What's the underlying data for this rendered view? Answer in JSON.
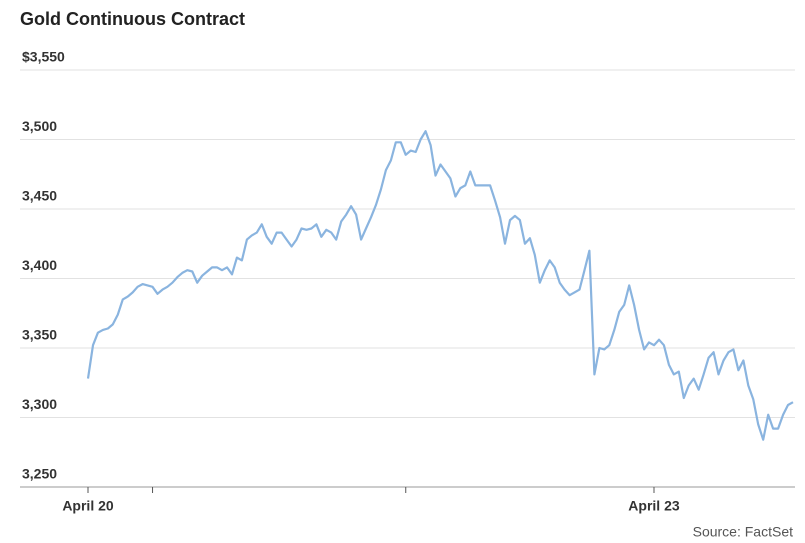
{
  "chart_data": {
    "type": "line",
    "title": "Gold Continuous Contract",
    "source": "Source: FactSet",
    "color": "#8ab4df",
    "grid": true,
    "xlim": [
      0,
      142
    ],
    "xticks": [
      {
        "value": 0,
        "label": "April 20"
      },
      {
        "value": 13,
        "label": null
      },
      {
        "value": 64,
        "label": null
      },
      {
        "value": 114,
        "label": "April 23"
      }
    ],
    "ylim": [
      3250,
      3550
    ],
    "yticks": [
      {
        "value": 3250,
        "label": "3,250"
      },
      {
        "value": 3300,
        "label": "3,300"
      },
      {
        "value": 3350,
        "label": "3,350"
      },
      {
        "value": 3400,
        "label": "3,400"
      },
      {
        "value": 3450,
        "label": "3,450"
      },
      {
        "value": 3500,
        "label": "3,500"
      },
      {
        "value": 3550,
        "label": "$3,550"
      }
    ],
    "values": [
      3328,
      3352,
      3361,
      3363,
      3364,
      3367,
      3374,
      3385,
      3387,
      3390,
      3394,
      3396,
      3395,
      3394,
      3389,
      3392,
      3394,
      3397,
      3401,
      3404,
      3406,
      3405,
      3397,
      3402,
      3405,
      3408,
      3408,
      3406,
      3408,
      3403,
      3415,
      3413,
      3428,
      3431,
      3433,
      3439,
      3430,
      3425,
      3433,
      3433,
      3428,
      3423,
      3428,
      3436,
      3435,
      3436,
      3439,
      3430,
      3435,
      3433,
      3428,
      3441,
      3446,
      3452,
      3446,
      3428,
      3436,
      3444,
      3453,
      3464,
      3478,
      3485,
      3498,
      3498,
      3489,
      3492,
      3491,
      3500,
      3506,
      3496,
      3474,
      3482,
      3477,
      3472,
      3459,
      3465,
      3467,
      3477,
      3467,
      3467,
      3467,
      3467,
      3456,
      3444,
      3425,
      3442,
      3445,
      3442,
      3425,
      3429,
      3417,
      3397,
      3406,
      3413,
      3408,
      3397,
      3392,
      3388,
      3390,
      3392,
      3406,
      3420,
      3331,
      3350,
      3349,
      3352,
      3363,
      3376,
      3381,
      3395,
      3381,
      3363,
      3349,
      3354,
      3352,
      3356,
      3352,
      3338,
      3331,
      3333,
      3314,
      3323,
      3328,
      3320,
      3331,
      3343,
      3347,
      3331,
      3341,
      3347,
      3349,
      3334,
      3341,
      3323,
      3313,
      3295,
      3284,
      3302,
      3292,
      3292,
      3302,
      3309,
      3311
    ]
  }
}
